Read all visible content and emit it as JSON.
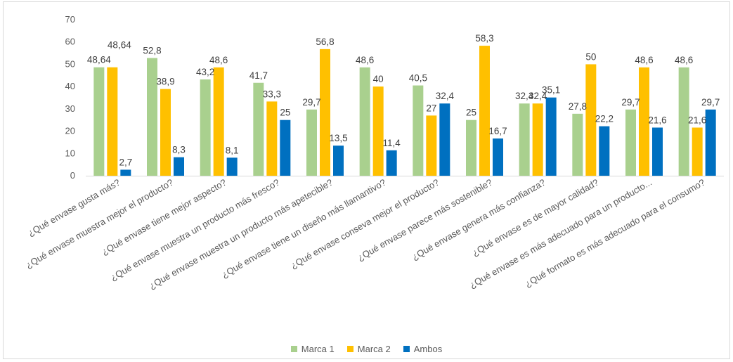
{
  "chart_data": {
    "type": "bar",
    "title": "",
    "xlabel": "",
    "ylabel": "",
    "ylim": [
      0,
      70
    ],
    "yticks": [
      0,
      10,
      20,
      30,
      40,
      50,
      60,
      70
    ],
    "grid": false,
    "legend_position": "bottom",
    "categories": [
      "¿Qué envase gusta más?",
      "¿Qué envase muestra mejor el producto?",
      "¿Qué envase tiene mejor aspecto?",
      "¿Qué envase muestra un producto más fresco?",
      "¿Qué envase muestra un producto más apetecible?",
      "¿Qué envase tiene un diseño más llamantivo?",
      "¿Qué envase conseva mejor el producto?",
      "¿Qué envase parece más sostenible?",
      "¿Qué envase genera más confianza?",
      "¿Qué envase es de mayor calidad?",
      "¿Qué envase es más adecuado para un producto...",
      "¿Qué formato es más adecuado para el consumo?"
    ],
    "series": [
      {
        "name": "Marca 1",
        "color": "#a9d08e",
        "values": [
          48.64,
          52.8,
          43.2,
          41.7,
          29.7,
          48.6,
          40.5,
          25,
          32.4,
          27.8,
          29.7,
          48.6
        ],
        "labels": [
          "48,64",
          "52,8",
          "43,2",
          "41,7",
          "29,7",
          "48,6",
          "40,5",
          "25",
          "32,4",
          "27,8",
          "29,7",
          "48,6"
        ]
      },
      {
        "name": "Marca 2",
        "color": "#ffc000",
        "values": [
          48.64,
          38.9,
          48.6,
          33.3,
          56.8,
          40,
          27,
          58.3,
          32.4,
          50,
          48.6,
          21.6
        ],
        "labels": [
          "48,64",
          "38,9",
          "48,6",
          "33,3",
          "56,8",
          "40",
          "27",
          "58,3",
          "32,4",
          "50",
          "48,6",
          "21,6"
        ]
      },
      {
        "name": "Ambos",
        "color": "#0070c0",
        "values": [
          2.7,
          8.3,
          8.1,
          25,
          13.5,
          11.4,
          32.4,
          16.7,
          35.1,
          22.2,
          21.6,
          29.7
        ],
        "labels": [
          "2,7",
          "8,3",
          "8,1",
          "25",
          "13,5",
          "11,4",
          "32,4",
          "16,7",
          "35,1",
          "22,2",
          "21,6",
          "29,7"
        ]
      }
    ]
  }
}
